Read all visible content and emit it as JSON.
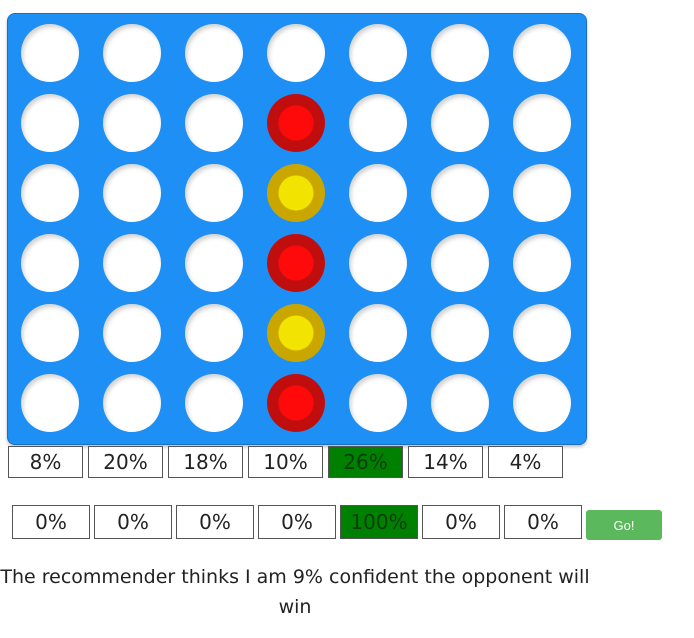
{
  "board": {
    "rows": 6,
    "cols": 7,
    "colors": {
      "board": "#1e90f5",
      "empty": "#ffffff",
      "red": "#ff0a0a",
      "yellow": "#f2e400"
    },
    "grid": [
      [
        "empty",
        "empty",
        "empty",
        "empty",
        "empty",
        "empty",
        "empty"
      ],
      [
        "empty",
        "empty",
        "empty",
        "red",
        "empty",
        "empty",
        "empty"
      ],
      [
        "empty",
        "empty",
        "empty",
        "yellow",
        "empty",
        "empty",
        "empty"
      ],
      [
        "empty",
        "empty",
        "empty",
        "red",
        "empty",
        "empty",
        "empty"
      ],
      [
        "empty",
        "empty",
        "empty",
        "yellow",
        "empty",
        "empty",
        "empty"
      ],
      [
        "empty",
        "empty",
        "empty",
        "red",
        "empty",
        "empty",
        "empty"
      ]
    ]
  },
  "recommendations": {
    "active_index": 4,
    "values": [
      "8%",
      "20%",
      "18%",
      "10%",
      "26%",
      "14%",
      "4%"
    ]
  },
  "selection": {
    "active_index": 4,
    "values": [
      "0%",
      "0%",
      "0%",
      "0%",
      "100%",
      "0%",
      "0%"
    ]
  },
  "go_label": "Go!",
  "status_text": "The recommender thinks I am 9% confident the opponent will win",
  "accent_color": "#008000",
  "go_color": "#5cb85c"
}
